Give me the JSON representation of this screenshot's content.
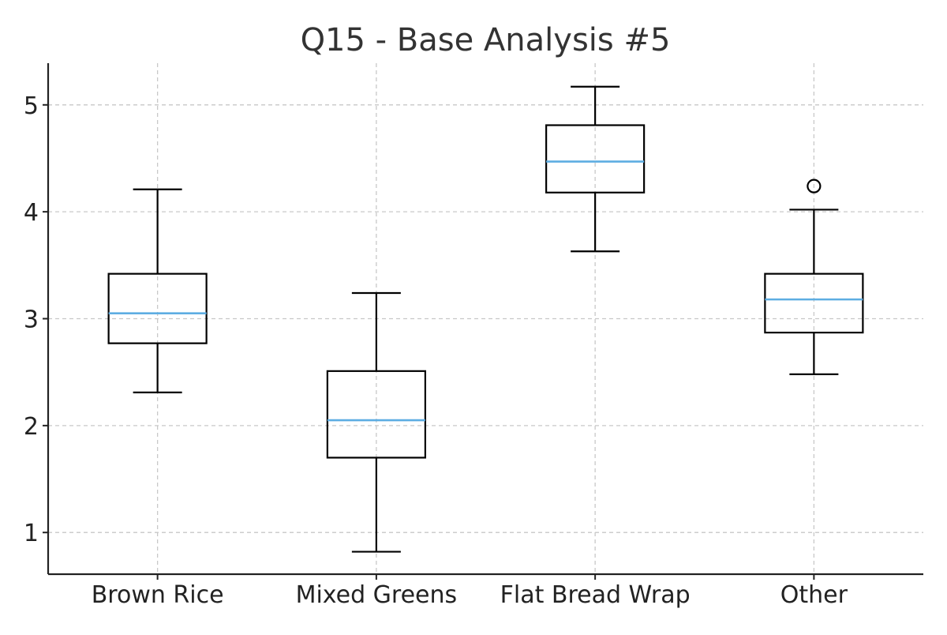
{
  "chart_data": {
    "type": "box",
    "title": "Q15 - Base Analysis #5",
    "xlabel": "",
    "ylabel": "",
    "categories": [
      "Brown Rice",
      "Mixed Greens",
      "Flat Bread Wrap",
      "Other"
    ],
    "ylim": [
      0.61,
      5.39
    ],
    "yticks": [
      1,
      2,
      3,
      4,
      5
    ],
    "grid": true,
    "colors": {
      "box": "#000000",
      "median": "#5dade2",
      "grid": "#c8c8c8",
      "axis": "#222222",
      "title": "#333333"
    },
    "boxes": [
      {
        "category": "Brown Rice",
        "whisker_low": 2.31,
        "q1": 2.77,
        "median": 3.05,
        "q3": 3.42,
        "whisker_high": 4.21,
        "outliers": []
      },
      {
        "category": "Mixed Greens",
        "whisker_low": 0.82,
        "q1": 1.7,
        "median": 2.05,
        "q3": 2.51,
        "whisker_high": 3.24,
        "outliers": []
      },
      {
        "category": "Flat Bread Wrap",
        "whisker_low": 3.63,
        "q1": 4.18,
        "median": 4.47,
        "q3": 4.81,
        "whisker_high": 5.17,
        "outliers": []
      },
      {
        "category": "Other",
        "whisker_low": 2.48,
        "q1": 2.87,
        "median": 3.18,
        "q3": 3.42,
        "whisker_high": 4.02,
        "outliers": [
          4.24
        ]
      }
    ]
  }
}
